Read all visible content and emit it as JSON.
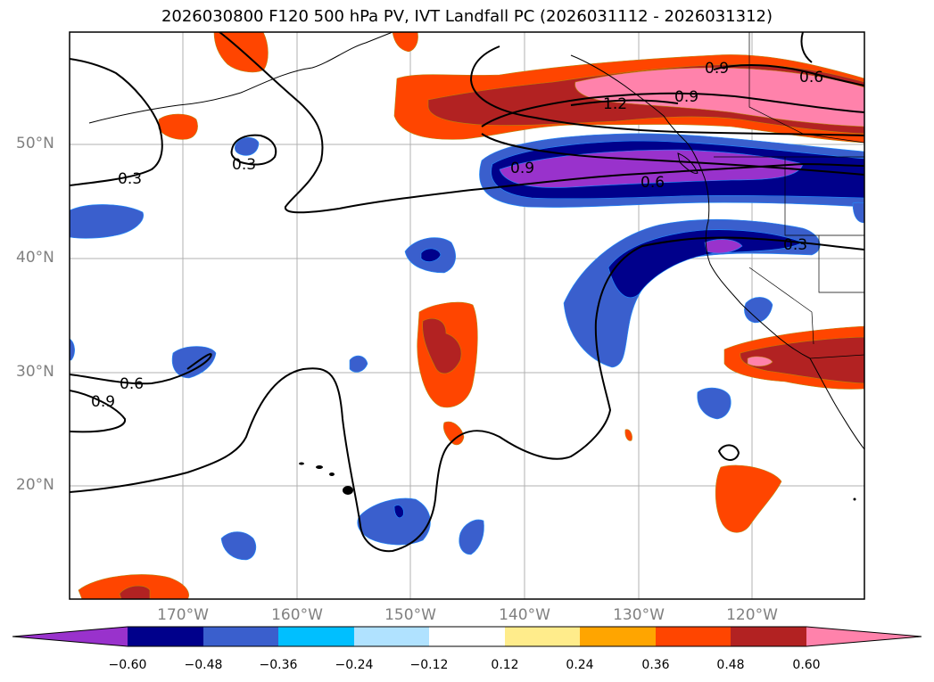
{
  "title": "2026030800 F120 500 hPa PV, IVT Landfall PC (2026031112 - 2026031312)",
  "colors": {
    "background": "#ffffff",
    "gridline": "#b0b0b0",
    "tick_text": "#808080",
    "contour": "#000000"
  },
  "map": {
    "lat_labels": [
      "50°N",
      "40°N",
      "30°N",
      "20°N"
    ],
    "lon_labels": [
      "170°W",
      "160°W",
      "150°W",
      "140°W",
      "130°W",
      "120°W"
    ],
    "contour_labels": [
      {
        "text": "0.3"
      },
      {
        "text": "0.3"
      },
      {
        "text": "0.6"
      },
      {
        "text": "0.9"
      },
      {
        "text": "0.9"
      },
      {
        "text": "0.6"
      },
      {
        "text": "0.3"
      },
      {
        "text": "0.9"
      },
      {
        "text": "0.6"
      },
      {
        "text": "1.2"
      },
      {
        "text": "0.9"
      }
    ]
  },
  "colorbar": {
    "colors": [
      "#9932cc",
      "#00008b",
      "#3a5fcd",
      "#00bfff",
      "#b0e2ff",
      "#ffffff",
      "#ffec8b",
      "#ffa500",
      "#ff4500",
      "#b22222",
      "#ff82ab"
    ],
    "tick_labels": [
      "−0.60",
      "−0.48",
      "−0.36",
      "−0.24",
      "−0.12",
      "0.12",
      "0.24",
      "0.36",
      "0.48",
      "0.60"
    ]
  }
}
